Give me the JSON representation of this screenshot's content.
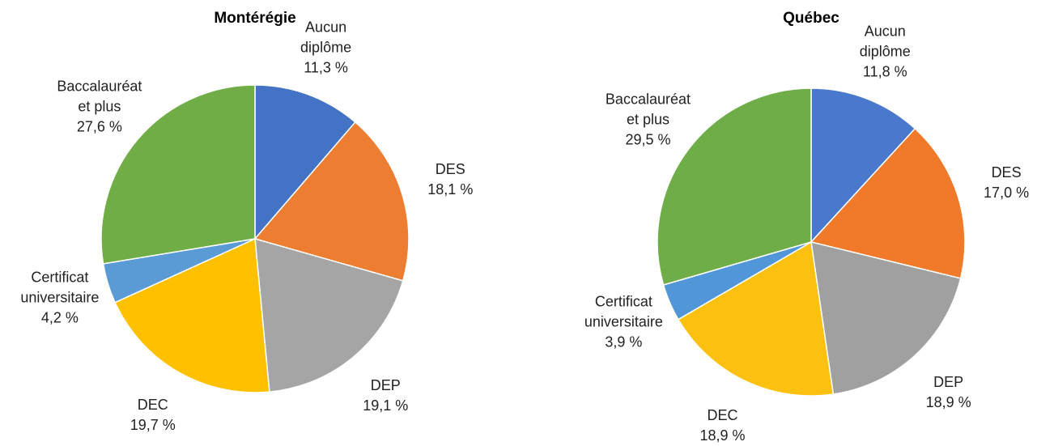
{
  "chart_data": [
    {
      "type": "pie",
      "title": "Montérégie",
      "categories": [
        "Aucun diplôme",
        "DES",
        "DEP",
        "DEC",
        "Certificat universitaire",
        "Baccalauréat et plus"
      ],
      "values": [
        11.3,
        18.1,
        19.1,
        19.7,
        4.2,
        27.6
      ],
      "value_labels": [
        "11,3 %",
        "18,1 %",
        "19,1 %",
        "19,7 %",
        "4,2 %",
        "27,6 %"
      ],
      "colors": [
        "#4472c4",
        "#ed7d31",
        "#a5a5a5",
        "#ffc000",
        "#5b9bd5",
        "#70ad47"
      ]
    },
    {
      "type": "pie",
      "title": "Québec",
      "categories": [
        "Aucun diplôme",
        "DES",
        "DEP",
        "DEC",
        "Certificat universitaire",
        "Baccalauréat et plus"
      ],
      "values": [
        11.8,
        17.0,
        18.9,
        18.9,
        3.9,
        29.5
      ],
      "value_labels": [
        "11,8 %",
        "17,0 %",
        "18,9 %",
        "18,9 %",
        "3,9 %",
        "29,5 %"
      ],
      "colors": [
        "#4a78cc",
        "#f07a2a",
        "#a0a0a0",
        "#fcc010",
        "#5196d8",
        "#6ead48"
      ]
    }
  ]
}
